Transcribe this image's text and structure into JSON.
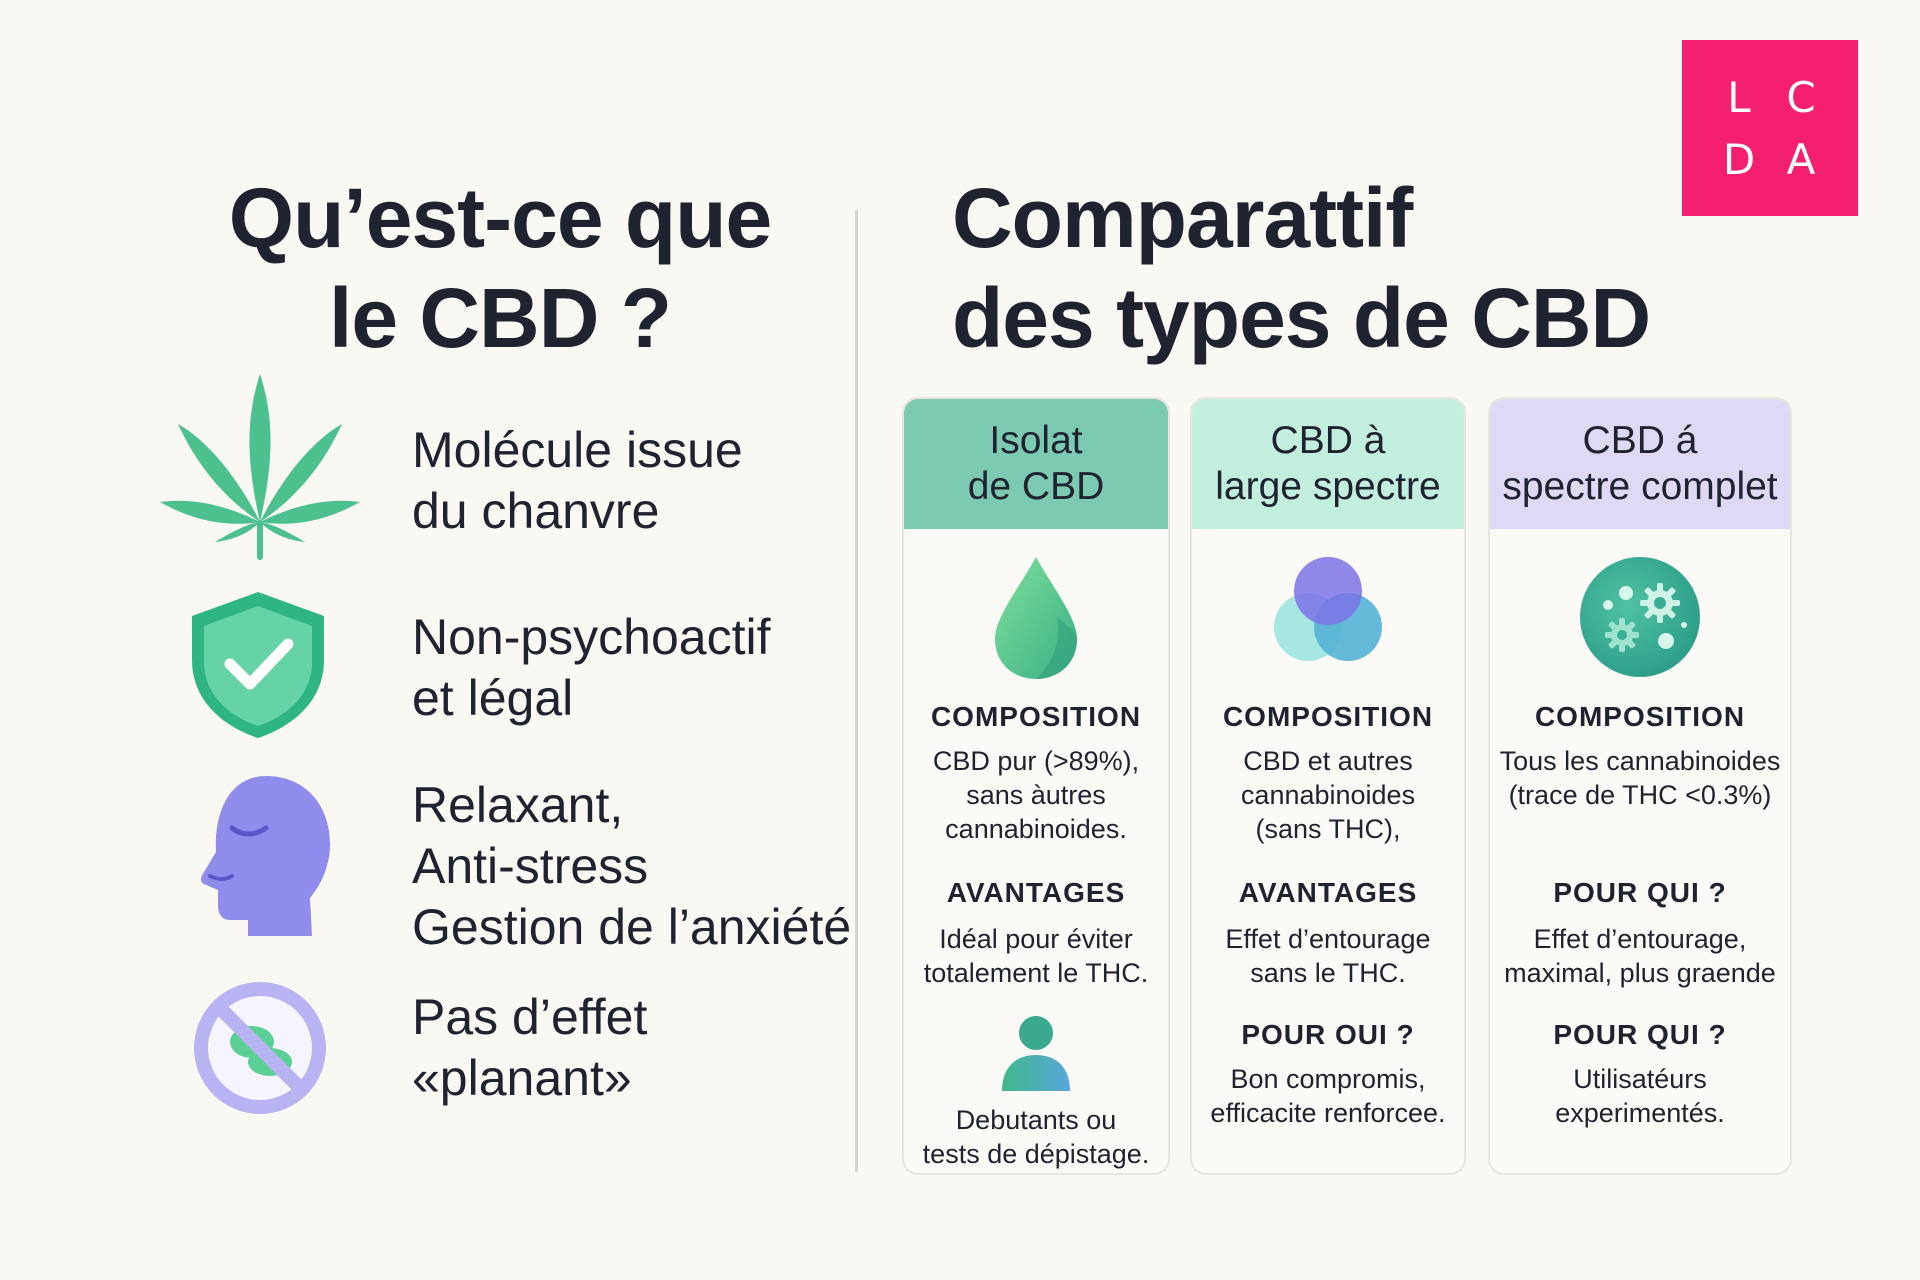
{
  "logo": {
    "letters": [
      "L",
      "C",
      "D",
      "A"
    ]
  },
  "left": {
    "title_line1": "Qu’est-ce que",
    "title_line2": "le CBD ?",
    "features": [
      {
        "icon": "cannabis-leaf-icon",
        "line1": "Molécule issue",
        "line2": "du chanvre"
      },
      {
        "icon": "shield-check-icon",
        "line1": "Non-psychoactif",
        "line2": "et légal"
      },
      {
        "icon": "calm-head-icon",
        "line1": "Relaxant,",
        "line2": "Anti-stress",
        "line3": "Gestion de l’anxiété"
      },
      {
        "icon": "no-high-icon",
        "line1": "Pas d’effet",
        "line2": "«planant»"
      }
    ]
  },
  "right": {
    "title_line1": "Comparattif",
    "title_line2": "des types de CBD",
    "cards": [
      {
        "head_line1": "Isolat",
        "head_line2": "de CBD",
        "head_color": "#7ccab2",
        "icon": "drop-icon",
        "composition_label": "COMPOSITION",
        "composition_l1": "CBD pur (>89%),",
        "composition_l2": "sans àutres",
        "composition_l3": "cannabinoides.",
        "avantages_label": "AVANTAGES",
        "avantages_l1": "Idéal pour éviter",
        "avantages_l2": "totalement le THC.",
        "person_icon": "person-icon",
        "pour_l1": "Debutants ou",
        "pour_l2": "tests de dépistage."
      },
      {
        "head_line1": "CBD à",
        "head_line2": "large spectre",
        "head_color": "#c3efdf",
        "icon": "overlap-circles-icon",
        "composition_label": "COMPOSITION",
        "composition_l1": "CBD et autres",
        "composition_l2": "cannabinoides",
        "composition_l3": "(sans THC),",
        "avantages_label": "AVANTAGES",
        "avantages_l1": "Effet d’entourage",
        "avantages_l2": "sans le THC.",
        "pour_label": "POUR OUI ?",
        "pour_l1": "Bon compromis,",
        "pour_l2": "efficacite renforcee."
      },
      {
        "head_line1": "CBD á",
        "head_line2": "spectre complet",
        "head_color": "#e0d9f5",
        "icon": "molecule-gears-icon",
        "composition_label": "COMPOSITION",
        "composition_l1": "Tous les cannabinoides",
        "composition_l2": "(trace de THC <0.3%)",
        "avantages_label": "POUR QUI ?",
        "avantages_l1": "Effet d’entourage,",
        "avantages_l2": "maximal, plus graende",
        "pour_label": "POUR QUI ?",
        "pour_l1": "Utilisatéurs",
        "pour_l2": "experimentés."
      }
    ]
  }
}
